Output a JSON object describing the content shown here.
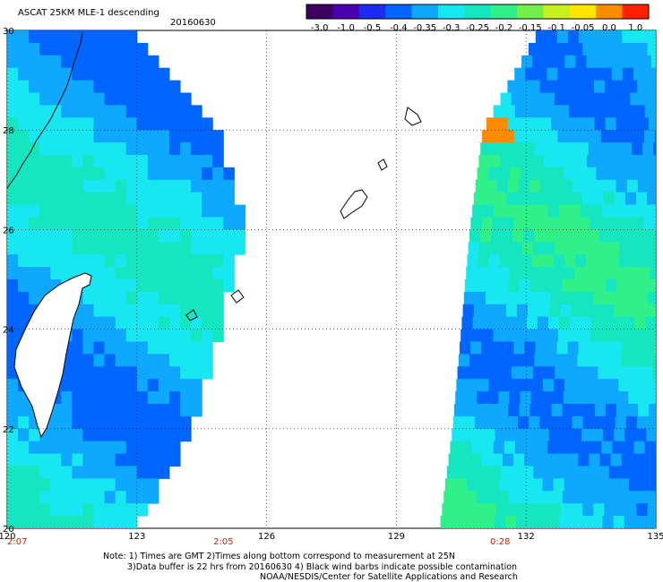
{
  "header": {
    "title": "ASCAT 25KM MLE-1 descending",
    "date": "20160630"
  },
  "colorbar": {
    "ticks": [
      "-3.0",
      "-1.0",
      "-0.5",
      "-0.4",
      "-0.35",
      "-0.3",
      "-0.25",
      "-0.2",
      "-0.15",
      "-0.1",
      "-0.05",
      "0.0",
      "1.0"
    ],
    "colors": [
      "#3c0060",
      "#4a00b0",
      "#1a2cf0",
      "#0066ff",
      "#0fa8ff",
      "#18e6f0",
      "#15e6c0",
      "#30f08a",
      "#72f04a",
      "#c8f020",
      "#ffe600",
      "#ff8c00",
      "#ff2000"
    ]
  },
  "footer": {
    "note_1": "Note: 1) Times are GMT 2)Times along bottom correspond to measurement at 25N",
    "note_2": "3)Data buffer is 22 hrs from 20160630 4) Black wind barbs indicate possible contamination",
    "note_3": "NOAA/NESDIS/Center for Satellite Applications and Research"
  },
  "chart_data": {
    "type": "heatmap",
    "title": "ASCAT 25KM MLE-1 descending",
    "subtitle": "20160630",
    "xlim": [
      120,
      135
    ],
    "ylim": [
      20,
      30
    ],
    "x_ticks": [
      "120",
      "123",
      "126",
      "129",
      "132",
      "135"
    ],
    "y_ticks": [
      "20",
      "22",
      "24",
      "26",
      "28",
      "30"
    ],
    "pass_times": [
      {
        "lon": 120,
        "time": "2:07"
      },
      {
        "lon": 125,
        "time": "2:05"
      },
      {
        "lon": 131.4,
        "time": "0:28"
      }
    ],
    "colorbar_range": [
      -3.0,
      1.0
    ],
    "swaths": [
      {
        "name": "west",
        "lat_lon_edges": [
          [
            30,
            120,
            122.85
          ],
          [
            28,
            120,
            124.8
          ],
          [
            26,
            120,
            125.4
          ],
          [
            24,
            120,
            124.8
          ],
          [
            22,
            120,
            124.2
          ],
          [
            20,
            120,
            122.9
          ]
        ],
        "typical_value_range": [
          -0.4,
          -0.2
        ]
      },
      {
        "name": "east",
        "lat_lon_edges": [
          [
            30,
            132.3,
            135
          ],
          [
            28,
            131.0,
            135
          ],
          [
            26,
            130.7,
            135
          ],
          [
            24,
            130.5,
            135
          ],
          [
            22,
            130.3,
            135
          ],
          [
            20,
            130.0,
            135
          ]
        ],
        "typical_value_range": [
          -0.4,
          -0.15
        ],
        "max_value_near": {
          "lat": 28.1,
          "lon": 131.15,
          "value": 0.0
        }
      }
    ],
    "grid": true
  },
  "icons": [
    "coastline-outline",
    "island-outline"
  ]
}
